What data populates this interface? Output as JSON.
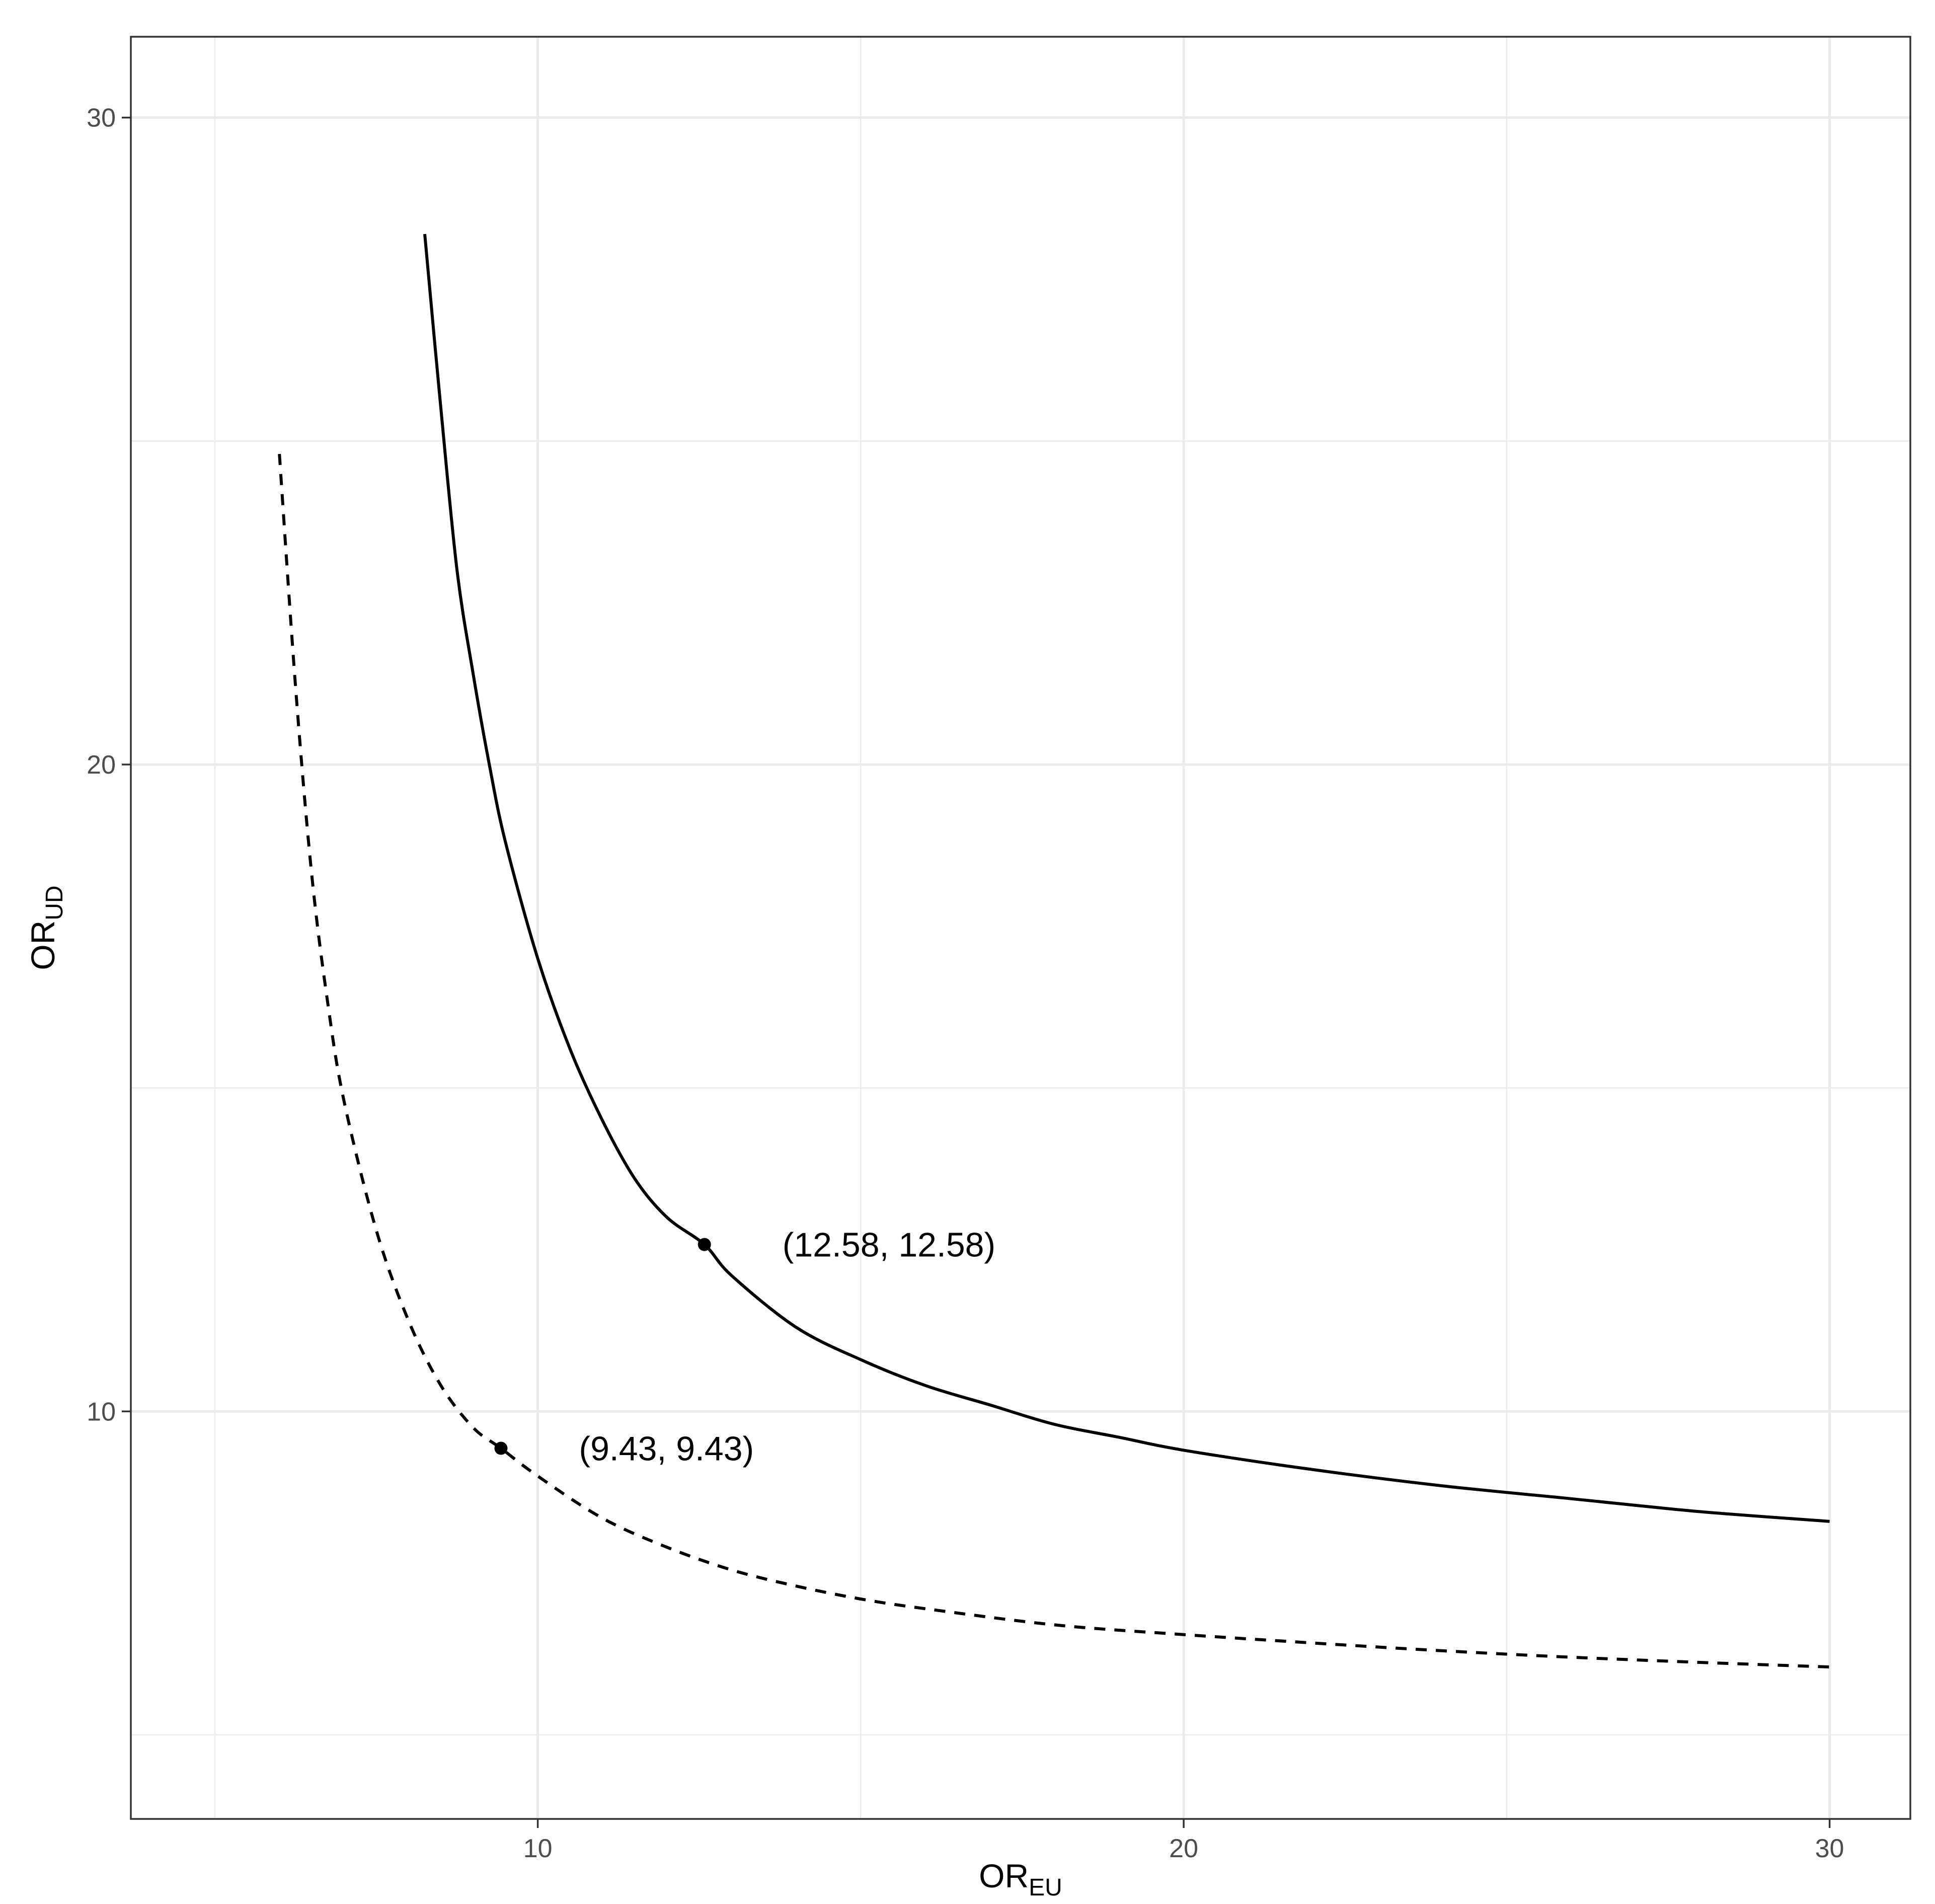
{
  "chart_data": {
    "type": "line",
    "title": "",
    "xlabel": {
      "main": "OR",
      "sub": "EU"
    },
    "ylabel": {
      "main": "OR",
      "sub": "UD"
    },
    "xlim": [
      3.7,
      31.25
    ],
    "ylim": [
      3.7,
      31.25
    ],
    "x_ticks": [
      10,
      20,
      30
    ],
    "y_ticks": [
      10,
      20,
      30
    ],
    "grid": true,
    "legend": "none",
    "series": [
      {
        "style": "solid",
        "color": "#000000",
        "x": [
          8.25,
          8.5,
          8.75,
          9.0,
          9.25,
          9.5,
          10.0,
          10.5,
          11.0,
          11.5,
          12.0,
          12.58,
          13.0,
          14.0,
          15.0,
          16.0,
          17.0,
          18.0,
          19.0,
          20.0,
          22.0,
          24.0,
          26.0,
          28.0,
          30.0
        ],
        "y": [
          28.2,
          25.5,
          23.0,
          21.4,
          20.0,
          18.8,
          17.0,
          15.6,
          14.5,
          13.6,
          13.0,
          12.58,
          12.1,
          11.3,
          10.8,
          10.4,
          10.1,
          9.8,
          9.6,
          9.4,
          9.1,
          8.85,
          8.65,
          8.45,
          8.3
        ]
      },
      {
        "style": "dashed",
        "color": "#000000",
        "x": [
          6.0,
          6.25,
          6.5,
          6.75,
          7.0,
          7.5,
          8.0,
          8.5,
          9.0,
          9.43,
          10.0,
          11.0,
          12.0,
          13.0,
          14.0,
          15.0,
          16.0,
          18.0,
          20.0,
          22.0,
          24.0,
          26.0,
          28.0,
          30.0
        ],
        "y": [
          24.8,
          21.2,
          18.3,
          16.3,
          14.8,
          12.8,
          11.4,
          10.4,
          9.75,
          9.43,
          9.0,
          8.35,
          7.9,
          7.55,
          7.3,
          7.1,
          6.95,
          6.7,
          6.55,
          6.42,
          6.3,
          6.2,
          6.12,
          6.05
        ]
      }
    ],
    "points": [
      {
        "x": 12.58,
        "y": 12.58
      },
      {
        "x": 9.43,
        "y": 9.43
      }
    ],
    "annotations": [
      {
        "text": "(12.58, 12.58)",
        "x": 12.58,
        "y": 12.58
      },
      {
        "text": "(9.43, 9.43)",
        "x": 9.43,
        "y": 9.43
      }
    ]
  }
}
